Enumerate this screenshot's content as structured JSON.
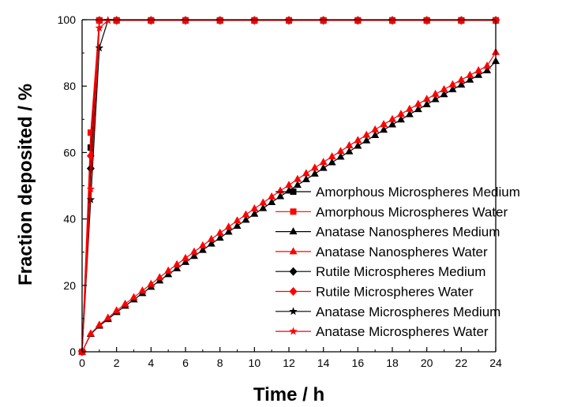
{
  "chart_data": {
    "type": "line",
    "xlabel": "Time / h",
    "ylabel": "Fraction deposited / %",
    "xlim": [
      0,
      24
    ],
    "ylim": [
      0,
      100
    ],
    "x_ticks": [
      0,
      2,
      4,
      6,
      8,
      10,
      12,
      14,
      16,
      18,
      20,
      22,
      24
    ],
    "y_ticks": [
      0,
      20,
      40,
      60,
      80,
      100
    ],
    "grid": false,
    "legend_position": "lower-right",
    "series": [
      {
        "name": "Amorphous Microspheres Medium",
        "color": "#000000",
        "marker": "square",
        "x": [
          0,
          0.5,
          1,
          2,
          4,
          6,
          8,
          10,
          12,
          14,
          16,
          18,
          20,
          22,
          24
        ],
        "y": [
          0,
          61.5,
          99.8,
          99.8,
          99.8,
          99.8,
          99.8,
          99.8,
          99.8,
          99.8,
          99.8,
          99.8,
          99.8,
          99.8,
          99.8
        ]
      },
      {
        "name": "Amorphous Microspheres Water",
        "color": "#ff0000",
        "marker": "square",
        "x": [
          0,
          0.5,
          1,
          2,
          4,
          6,
          8,
          10,
          12,
          14,
          16,
          18,
          20,
          22,
          24
        ],
        "y": [
          0,
          66.0,
          99.8,
          99.8,
          99.8,
          99.8,
          99.8,
          99.8,
          99.8,
          99.8,
          99.8,
          99.8,
          99.8,
          99.8,
          99.8
        ]
      },
      {
        "name": "Anatase Nanospheres Medium",
        "color": "#000000",
        "marker": "triangle",
        "x": [
          0,
          0.5,
          1,
          1.5,
          2,
          2.5,
          3,
          3.5,
          4,
          4.5,
          5,
          5.5,
          6,
          6.5,
          7,
          7.5,
          8,
          8.5,
          9,
          9.5,
          10,
          10.5,
          11,
          11.5,
          12,
          12.5,
          13,
          13.5,
          14,
          14.5,
          15,
          15.5,
          16,
          16.5,
          17,
          17.5,
          18,
          18.5,
          19,
          19.5,
          20,
          20.5,
          21,
          21.5,
          22,
          22.5,
          23,
          23.5,
          24
        ],
        "y": [
          0,
          5.3,
          7.8,
          9.8,
          11.9,
          13.8,
          15.7,
          17.6,
          19.5,
          21.4,
          23.3,
          25.1,
          27.0,
          28.8,
          30.6,
          32.5,
          34.3,
          36.1,
          37.9,
          39.7,
          41.5,
          43.2,
          45.0,
          46.8,
          48.5,
          50.2,
          51.9,
          53.6,
          55.3,
          57.0,
          58.7,
          60.3,
          62.0,
          63.6,
          65.2,
          66.8,
          68.4,
          69.9,
          71.5,
          73.0,
          74.5,
          76.0,
          77.5,
          79.0,
          80.4,
          81.9,
          83.3,
          84.7,
          87.5
        ]
      },
      {
        "name": "Anatase Nanospheres Water",
        "color": "#ff0000",
        "marker": "triangle",
        "x": [
          0,
          0.5,
          1,
          1.5,
          2,
          2.5,
          3,
          3.5,
          4,
          4.5,
          5,
          5.5,
          6,
          6.5,
          7,
          7.5,
          8,
          8.5,
          9,
          9.5,
          10,
          10.5,
          11,
          11.5,
          12,
          12.5,
          13,
          13.5,
          14,
          14.5,
          15,
          15.5,
          16,
          16.5,
          17,
          17.5,
          18,
          18.5,
          19,
          19.5,
          20,
          20.5,
          21,
          21.5,
          22,
          22.5,
          23,
          23.5,
          24
        ],
        "y": [
          0,
          5.5,
          8.1,
          10.2,
          12.4,
          14.4,
          16.4,
          18.4,
          20.4,
          22.4,
          24.4,
          26.3,
          28.2,
          30.1,
          32.0,
          33.9,
          35.8,
          37.6,
          39.5,
          41.3,
          43.1,
          44.9,
          46.7,
          48.5,
          50.2,
          52.0,
          53.7,
          55.4,
          57.1,
          58.8,
          60.4,
          62.1,
          63.7,
          65.3,
          66.9,
          68.5,
          70.0,
          71.6,
          73.1,
          74.6,
          76.1,
          77.6,
          79.0,
          80.5,
          81.9,
          83.3,
          84.7,
          86.1,
          90.2
        ]
      },
      {
        "name": "Rutile Microspheres Medium",
        "color": "#000000",
        "marker": "diamond",
        "x": [
          0,
          0.5,
          1,
          2,
          4,
          6,
          8,
          10,
          12,
          14,
          16,
          18,
          20,
          22,
          24
        ],
        "y": [
          0,
          55.2,
          99.8,
          99.8,
          99.8,
          99.8,
          99.8,
          99.8,
          99.8,
          99.8,
          99.8,
          99.8,
          99.8,
          99.8,
          99.8
        ]
      },
      {
        "name": "Rutile Microspheres Water",
        "color": "#ff0000",
        "marker": "diamond",
        "x": [
          0,
          0.5,
          1,
          2,
          4,
          6,
          8,
          10,
          12,
          14,
          16,
          18,
          20,
          22,
          24
        ],
        "y": [
          0,
          59.0,
          99.8,
          99.8,
          99.8,
          99.8,
          99.8,
          99.8,
          99.8,
          99.8,
          99.8,
          99.8,
          99.8,
          99.8,
          99.8
        ]
      },
      {
        "name": "Anatase Microspheres Medium",
        "color": "#000000",
        "marker": "star",
        "x": [
          0,
          0.5,
          1,
          1.5,
          2,
          4,
          6,
          8,
          10,
          12,
          14,
          16,
          18,
          20,
          22,
          24
        ],
        "y": [
          0,
          45.8,
          91.5,
          99.8,
          99.8,
          99.8,
          99.8,
          99.8,
          99.8,
          99.8,
          99.8,
          99.8,
          99.8,
          99.8,
          99.8,
          99.8
        ]
      },
      {
        "name": "Anatase Microspheres Water",
        "color": "#ff0000",
        "marker": "star",
        "x": [
          0,
          0.5,
          1,
          1.5,
          2,
          4,
          6,
          8,
          10,
          12,
          14,
          16,
          18,
          20,
          22,
          24
        ],
        "y": [
          0,
          49.0,
          97.5,
          99.8,
          99.8,
          99.8,
          99.8,
          99.8,
          99.8,
          99.8,
          99.8,
          99.8,
          99.8,
          99.8,
          99.8,
          99.8
        ]
      }
    ]
  }
}
